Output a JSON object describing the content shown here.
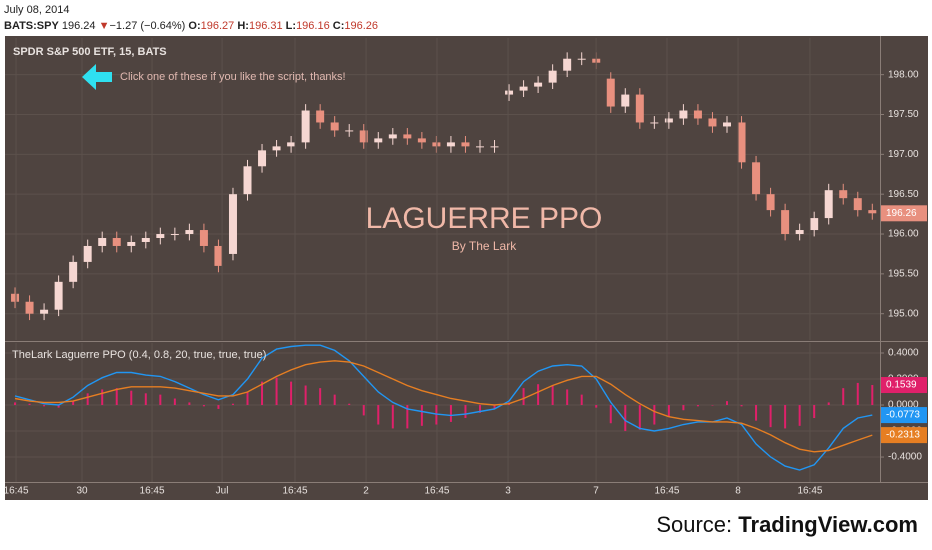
{
  "header": {
    "date": "July 08, 2014",
    "symbol": "BATS:SPY",
    "last": 196.24,
    "arrow": "▼",
    "change": "−1.27 (−0.64%)",
    "o_label": "O:",
    "open": 196.27,
    "h_label": "H:",
    "high": 196.31,
    "l_label": "L:",
    "low": 196.16,
    "c_label": "C:",
    "close": 196.26
  },
  "chart_data": [
    {
      "type": "candlestick",
      "title": "SPDR S&P 500 ETF, 15, BATS",
      "annotation": "Click one of these if you like the script, thanks!",
      "watermark": "LAGUERRE PPO",
      "watermark_subtitle": "By The Lark",
      "up_color": "#f6d7d2",
      "down_color": "#e8907f",
      "xlim": [
        -0.69,
        59.53
      ],
      "ylim": [
        194.67,
        198.46
      ],
      "yticks": [
        {
          "value": 195,
          "label": "195.00"
        },
        {
          "value": 195.5,
          "label": "195.50"
        },
        {
          "value": 196,
          "label": "196.00"
        },
        {
          "value": 196.5,
          "label": "196.50"
        },
        {
          "value": 197,
          "label": "197.00"
        },
        {
          "value": 197.5,
          "label": "197.50"
        },
        {
          "value": 198,
          "label": "198.00"
        }
      ],
      "open": [
        195.25,
        195.15,
        195.0,
        195.05,
        195.4,
        195.65,
        195.85,
        195.95,
        195.85,
        195.9,
        195.95,
        196.0,
        196.0,
        196.05,
        195.85,
        195.75,
        196.5,
        196.85,
        197.05,
        197.1,
        197.15,
        197.55,
        197.4,
        197.3,
        197.3,
        197.15,
        197.2,
        197.25,
        197.2,
        197.15,
        197.1,
        197.15,
        197.1,
        197.1,
        197.75,
        197.8,
        197.85,
        197.9,
        198.05,
        198.2,
        198.2,
        197.95,
        197.6,
        197.75,
        197.4,
        197.4,
        197.45,
        197.55,
        197.45,
        197.35,
        197.4,
        196.9,
        196.5,
        196.3,
        196.0,
        196.05,
        196.2,
        196.55,
        196.45,
        196.3
      ],
      "high": [
        195.33,
        195.23,
        195.13,
        195.48,
        195.73,
        195.93,
        196.03,
        196.03,
        195.98,
        196.03,
        196.08,
        196.08,
        196.13,
        196.13,
        195.93,
        196.58,
        196.93,
        197.13,
        197.18,
        197.23,
        197.63,
        197.63,
        197.48,
        197.38,
        197.38,
        197.28,
        197.33,
        197.33,
        197.28,
        197.23,
        197.23,
        197.23,
        197.18,
        197.18,
        197.88,
        197.93,
        197.98,
        198.13,
        198.28,
        198.28,
        198.28,
        198.03,
        197.83,
        197.83,
        197.48,
        197.53,
        197.63,
        197.63,
        197.53,
        197.48,
        197.48,
        196.98,
        196.58,
        196.38,
        196.13,
        196.28,
        196.63,
        196.63,
        196.53,
        196.38
      ],
      "low": [
        195.07,
        194.92,
        194.92,
        194.97,
        195.32,
        195.57,
        195.77,
        195.77,
        195.77,
        195.82,
        195.87,
        195.92,
        195.92,
        195.77,
        195.52,
        195.67,
        196.42,
        196.77,
        196.97,
        197.02,
        197.07,
        197.32,
        197.22,
        197.22,
        197.07,
        197.07,
        197.12,
        197.12,
        197.07,
        197.02,
        197.02,
        197.02,
        197.02,
        197.02,
        197.67,
        197.72,
        197.77,
        197.82,
        197.97,
        198.12,
        198.07,
        197.52,
        197.52,
        197.32,
        197.32,
        197.32,
        197.37,
        197.37,
        197.27,
        197.27,
        196.82,
        196.42,
        196.22,
        195.92,
        195.92,
        195.97,
        196.12,
        196.37,
        196.22,
        196.18
      ],
      "close": [
        195.15,
        195.0,
        195.05,
        195.4,
        195.65,
        195.85,
        195.95,
        195.85,
        195.9,
        195.95,
        196.0,
        196.0,
        196.05,
        195.85,
        195.6,
        196.5,
        196.85,
        197.05,
        197.1,
        197.15,
        197.55,
        197.4,
        197.3,
        197.3,
        197.15,
        197.2,
        197.25,
        197.2,
        197.15,
        197.1,
        197.15,
        197.1,
        197.1,
        197.1,
        197.8,
        197.85,
        197.9,
        198.05,
        198.2,
        198.2,
        198.15,
        197.6,
        197.75,
        197.4,
        197.4,
        197.45,
        197.55,
        197.45,
        197.35,
        197.4,
        196.9,
        196.5,
        196.3,
        196.0,
        196.05,
        196.2,
        196.55,
        196.45,
        196.3,
        196.26
      ]
    },
    {
      "type": "indicator",
      "title": "TheLark Laguerre PPO (0.4, 0.8, 20, true, true, true)",
      "xlim": [
        -0.69,
        59.53
      ],
      "ylim": [
        -0.592,
        0.477
      ],
      "yticks": [
        {
          "value": -0.4,
          "label": "-0.4000"
        },
        {
          "value": -0.2,
          "label": "-0.2000"
        },
        {
          "value": 0,
          "label": "0.0000"
        },
        {
          "value": 0.2,
          "label": "0.2000"
        },
        {
          "value": 0.4,
          "label": "0.4000"
        }
      ],
      "xticks": [
        {
          "value": 0.07,
          "label": "16:45"
        },
        {
          "value": 4.61,
          "label": "30"
        },
        {
          "value": 9.43,
          "label": "16:45"
        },
        {
          "value": 14.25,
          "label": "Jul"
        },
        {
          "value": 19.27,
          "label": "16:45"
        },
        {
          "value": 24.16,
          "label": "2"
        },
        {
          "value": 29.04,
          "label": "16:45"
        },
        {
          "value": 33.93,
          "label": "3"
        },
        {
          "value": 39.99,
          "label": "7"
        },
        {
          "value": 44.87,
          "label": "16:45"
        },
        {
          "value": 49.76,
          "label": "8"
        },
        {
          "value": 54.71,
          "label": "16:45"
        }
      ],
      "series": [
        {
          "kind": "histogram",
          "color": "#e0206a",
          "values": [
            0.02,
            0.01,
            -0.01,
            -0.02,
            0.03,
            0.09,
            0.12,
            0.13,
            0.11,
            0.09,
            0.08,
            0.05,
            0.02,
            -0.01,
            -0.03,
            0.01,
            0.1,
            0.18,
            0.21,
            0.18,
            0.15,
            0.13,
            0.08,
            0.01,
            -0.08,
            -0.15,
            -0.18,
            -0.18,
            -0.16,
            -0.15,
            -0.13,
            -0.1,
            -0.06,
            -0.03,
            0.02,
            0.13,
            0.16,
            0.15,
            0.12,
            0.08,
            -0.02,
            -0.14,
            -0.2,
            -0.19,
            -0.15,
            -0.09,
            -0.04,
            -0.01,
            0.0,
            0.03,
            -0.01,
            -0.12,
            -0.17,
            -0.18,
            -0.16,
            -0.1,
            0.02,
            0.13,
            0.17,
            0.1539
          ]
        },
        {
          "kind": "line",
          "color": "#2196f3",
          "values": [
            0.07,
            0.04,
            0.01,
            0.0,
            0.06,
            0.15,
            0.21,
            0.25,
            0.25,
            0.23,
            0.22,
            0.18,
            0.13,
            0.08,
            0.04,
            0.08,
            0.2,
            0.36,
            0.43,
            0.45,
            0.46,
            0.46,
            0.42,
            0.34,
            0.22,
            0.1,
            0.02,
            -0.03,
            -0.05,
            -0.07,
            -0.08,
            -0.07,
            -0.05,
            -0.03,
            0.03,
            0.18,
            0.26,
            0.3,
            0.31,
            0.3,
            0.2,
            0.02,
            -0.12,
            -0.18,
            -0.2,
            -0.18,
            -0.15,
            -0.13,
            -0.13,
            -0.1,
            -0.15,
            -0.3,
            -0.4,
            -0.47,
            -0.5,
            -0.46,
            -0.33,
            -0.18,
            -0.1,
            -0.0773
          ]
        },
        {
          "kind": "line",
          "color": "#e67e22",
          "values": [
            0.05,
            0.03,
            0.02,
            0.02,
            0.03,
            0.06,
            0.09,
            0.12,
            0.14,
            0.14,
            0.14,
            0.13,
            0.11,
            0.09,
            0.07,
            0.07,
            0.1,
            0.16,
            0.22,
            0.27,
            0.31,
            0.33,
            0.34,
            0.33,
            0.3,
            0.25,
            0.2,
            0.15,
            0.11,
            0.08,
            0.05,
            0.03,
            0.01,
            0.0,
            0.01,
            0.05,
            0.1,
            0.15,
            0.19,
            0.22,
            0.22,
            0.16,
            0.08,
            0.01,
            -0.05,
            -0.09,
            -0.11,
            -0.12,
            -0.13,
            -0.13,
            -0.14,
            -0.18,
            -0.23,
            -0.29,
            -0.34,
            -0.36,
            -0.35,
            -0.31,
            -0.27,
            -0.2313
          ]
        }
      ]
    }
  ],
  "source": {
    "prefix": "Source:",
    "name": "TradingView.com"
  }
}
